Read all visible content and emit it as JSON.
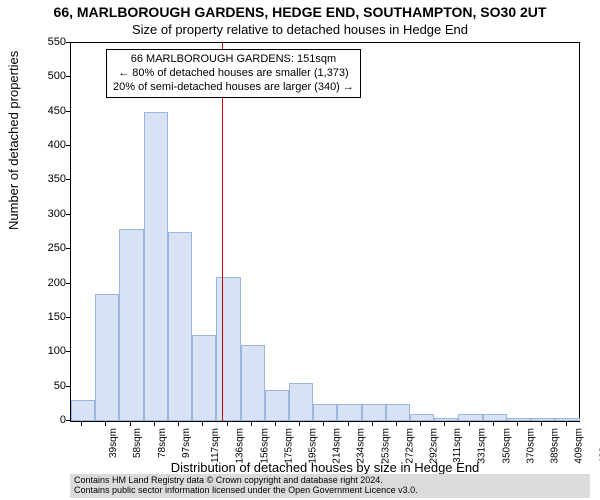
{
  "title": "66, MARLBOROUGH GARDENS, HEDGE END, SOUTHAMPTON, SO30 2UT",
  "subtitle": "Size of property relative to detached houses in Hedge End",
  "ylabel": "Number of detached properties",
  "xlabel": "Distribution of detached houses by size in Hedge End",
  "footer_line1": "Contains HM Land Registry data © Crown copyright and database right 2024.",
  "footer_line2": "Contains public sector information licensed under the Open Government Licence v3.0.",
  "chart": {
    "type": "histogram",
    "background_color": "#ffffff",
    "bar_fill": "#d7e3f4",
    "bar_border": "#9bb6dc",
    "axis_color": "#000000",
    "ref_line_color": "#cc0000",
    "ref_value_x": 151,
    "x_min": 30,
    "x_max": 438,
    "x_tick_start": 39,
    "x_tick_step": 19.45,
    "x_tick_count": 21,
    "x_tick_unit": "sqm",
    "y_min": 0,
    "y_max": 550,
    "y_tick_step": 50,
    "bar_width_data": 19.45,
    "bins_start": 30,
    "values": [
      30,
      185,
      280,
      450,
      275,
      125,
      210,
      110,
      45,
      55,
      25,
      25,
      25,
      25,
      10,
      5,
      10,
      10,
      5,
      5,
      5
    ],
    "title_fontsize": 14,
    "subtitle_fontsize": 13,
    "axis_label_fontsize": 13,
    "tick_fontsize": 11,
    "xtick_fontsize": 10,
    "annotation": {
      "lines": [
        "66 MARLBOROUGH GARDENS: 151sqm",
        "← 80% of detached houses are smaller (1,373)",
        "20% of semi-detached houses are larger (340) →"
      ],
      "fontsize": 11,
      "border_color": "#000000",
      "background_color": "#ffffff"
    }
  }
}
